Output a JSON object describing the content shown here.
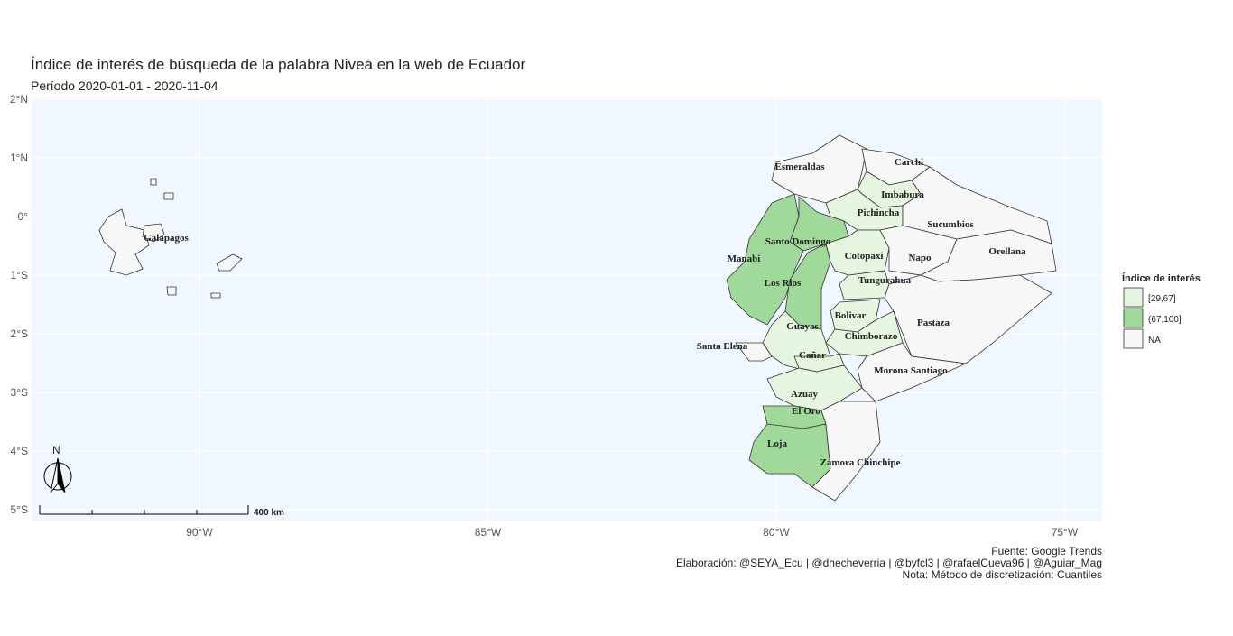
{
  "title": "Índice de interés de búsqueda de la palabra Nivea en la web de Ecuador",
  "subtitle": "Período 2020-01-01 - 2020-11-04",
  "map": {
    "yticks": [
      {
        "value": 2,
        "label": "2°N"
      },
      {
        "value": 1,
        "label": "1°N"
      },
      {
        "value": 0,
        "label": "0°"
      },
      {
        "value": -1,
        "label": "1°S"
      },
      {
        "value": -2,
        "label": "2°S"
      },
      {
        "value": -3,
        "label": "3°S"
      },
      {
        "value": -4,
        "label": "4°S"
      },
      {
        "value": -5,
        "label": "5°S"
      }
    ],
    "xticks": [
      {
        "value": -90,
        "label": "90°W"
      },
      {
        "value": -85,
        "label": "85°W"
      },
      {
        "value": -80,
        "label": "80°W"
      },
      {
        "value": -75,
        "label": "75°W"
      }
    ],
    "provinces": [
      {
        "name": "Galapagos",
        "class": "NA"
      },
      {
        "name": "Esmeraldas",
        "class": "NA"
      },
      {
        "name": "Carchi",
        "class": "NA"
      },
      {
        "name": "Imbabura",
        "class": "[29,67]"
      },
      {
        "name": "Pichincha",
        "class": "[29,67]"
      },
      {
        "name": "Sucumbios",
        "class": "NA"
      },
      {
        "name": "Santo Domingo",
        "class": "(67,100]"
      },
      {
        "name": "Manabi",
        "class": "(67,100]"
      },
      {
        "name": "Los Rios",
        "class": "(67,100]"
      },
      {
        "name": "Cotopaxi",
        "class": "[29,67]"
      },
      {
        "name": "Napo",
        "class": "NA"
      },
      {
        "name": "Orellana",
        "class": "NA"
      },
      {
        "name": "Tungurahua",
        "class": "[29,67]"
      },
      {
        "name": "Bolivar",
        "class": "[29,67]"
      },
      {
        "name": "Pastaza",
        "class": "NA"
      },
      {
        "name": "Chimborazo",
        "class": "[29,67]"
      },
      {
        "name": "Guayas",
        "class": "[29,67]"
      },
      {
        "name": "Santa Elena",
        "class": "NA"
      },
      {
        "name": "Cañar",
        "class": "[29,67]"
      },
      {
        "name": "Morona Santiago",
        "class": "NA"
      },
      {
        "name": "Azuay",
        "class": "[29,67]"
      },
      {
        "name": "El Oro",
        "class": "(67,100]"
      },
      {
        "name": "Loja",
        "class": "(67,100]"
      },
      {
        "name": "Zamora Chinchipe",
        "class": "NA"
      }
    ]
  },
  "legend": {
    "title": "Índice de interés",
    "entries": [
      {
        "label": "[29,67]",
        "color": "#e5f5e0"
      },
      {
        "label": "(67,100]",
        "color": "#a1d99b"
      },
      {
        "label": "NA",
        "color": "#f7f7f7"
      }
    ]
  },
  "scale_bar": "400 km",
  "north": "N",
  "caption": [
    "Fuente: Google Trends",
    "Elaboración:  @SEYA_Ecu | @dhecheverria | @byfcl3 | @rafaelCueva96 | @Aguiar_Mag",
    "Nota: Método de discretización: Cuantiles"
  ]
}
